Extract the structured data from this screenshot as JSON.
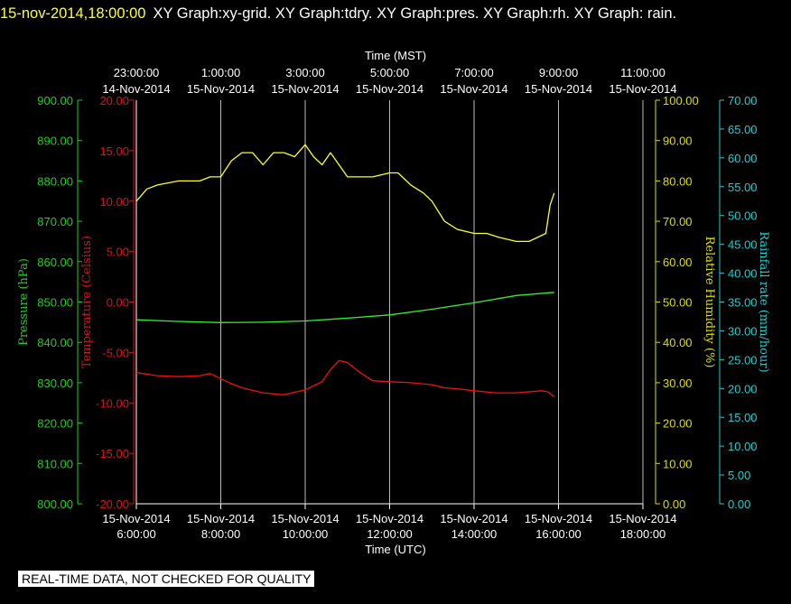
{
  "header": {
    "timestamp": "15-nov-2014,18:00:00",
    "graphs": "XY Graph:xy-grid.  XY Graph:tdry.  XY Graph:pres.  XY Graph:rh.  XY Graph: rain."
  },
  "footer": {
    "quality_note": "REAL-TIME DATA, NOT CHECKED FOR QUALITY"
  },
  "chart_data": {
    "type": "line",
    "top_axis": {
      "label": "Time (MST)",
      "ticks": [
        {
          "time": "23:00:00",
          "date": "14-Nov-2014"
        },
        {
          "time": "1:00:00",
          "date": "15-Nov-2014"
        },
        {
          "time": "3:00:00",
          "date": "15-Nov-2014"
        },
        {
          "time": "5:00:00",
          "date": "15-Nov-2014"
        },
        {
          "time": "7:00:00",
          "date": "15-Nov-2014"
        },
        {
          "time": "9:00:00",
          "date": "15-Nov-2014"
        },
        {
          "time": "11:00:00",
          "date": "15-Nov-2014"
        }
      ]
    },
    "bottom_axis": {
      "label": "Time (UTC)",
      "ticks": [
        {
          "date": "15-Nov-2014",
          "time": "6:00:00"
        },
        {
          "date": "15-Nov-2014",
          "time": "8:00:00"
        },
        {
          "date": "15-Nov-2014",
          "time": "10:00:00"
        },
        {
          "date": "15-Nov-2014",
          "time": "12:00:00"
        },
        {
          "date": "15-Nov-2014",
          "time": "14:00:00"
        },
        {
          "date": "15-Nov-2014",
          "time": "16:00:00"
        },
        {
          "date": "15-Nov-2014",
          "time": "18:00:00"
        }
      ],
      "range_utc_hours": [
        6,
        18
      ]
    },
    "axes": {
      "pressure": {
        "label": "Pressure (hPa)",
        "color": "#22cc22",
        "range": [
          800,
          900
        ],
        "ticks": [
          "800.00",
          "810.00",
          "820.00",
          "830.00",
          "840.00",
          "850.00",
          "860.00",
          "870.00",
          "880.00",
          "890.00",
          "900.00"
        ]
      },
      "temperature": {
        "label": "Temperature (Celsius)",
        "color": "#dd1111",
        "range": [
          -20,
          20
        ],
        "ticks": [
          "-20.00",
          "-15.00",
          "-10.00",
          "-5.00",
          "0.00",
          "5.00",
          "10.00",
          "15.00",
          "20.00"
        ]
      },
      "humidity": {
        "label": "Relative Humidity (%)",
        "color": "#dddd11",
        "range": [
          0,
          100
        ],
        "ticks": [
          "0.00",
          "10.00",
          "20.00",
          "30.00",
          "40.00",
          "50.00",
          "60.00",
          "70.00",
          "80.00",
          "90.00",
          "100.00"
        ]
      },
      "rainfall": {
        "label": "Rainfall rate (mm/hour)",
        "color": "#22cccc",
        "range": [
          0,
          70
        ],
        "ticks": [
          "0.00",
          "5.00",
          "10.00",
          "15.00",
          "20.00",
          "25.00",
          "30.00",
          "35.00",
          "40.00",
          "45.00",
          "50.00",
          "55.00",
          "60.00",
          "65.00",
          "70.00"
        ]
      }
    },
    "grid": true,
    "series": [
      {
        "axis": "humidity",
        "color": "#ffff22",
        "x": [
          6.0,
          6.25,
          6.5,
          7.0,
          7.5,
          7.75,
          8.0,
          8.25,
          8.5,
          8.75,
          9.0,
          9.25,
          9.5,
          9.75,
          10.0,
          10.2,
          10.4,
          10.6,
          10.8,
          11.0,
          11.3,
          11.6,
          12.0,
          12.2,
          12.5,
          12.8,
          13.0,
          13.3,
          13.6,
          14.0,
          14.3,
          14.6,
          15.0,
          15.3,
          15.5,
          15.7,
          15.8,
          15.9
        ],
        "values": [
          75,
          78,
          79,
          80,
          80,
          81,
          81,
          85,
          87,
          87,
          84,
          87,
          87,
          86,
          89,
          86,
          84,
          87,
          84,
          81,
          81,
          81,
          82,
          82,
          79,
          77,
          75,
          70,
          68,
          67,
          67,
          66,
          65,
          65,
          66,
          67,
          74,
          77
        ]
      },
      {
        "axis": "pressure",
        "color": "#33ee33",
        "x": [
          6.0,
          7.0,
          8.0,
          9.0,
          10.0,
          11.0,
          12.0,
          13.0,
          14.0,
          15.0,
          15.9
        ],
        "values": [
          845.6,
          845.2,
          844.9,
          845.0,
          845.3,
          846.0,
          846.8,
          848.2,
          849.8,
          851.6,
          852.4
        ]
      },
      {
        "axis": "temperature",
        "color": "#ee1111",
        "x": [
          6.0,
          6.5,
          7.0,
          7.5,
          7.75,
          8.0,
          8.25,
          8.5,
          9.0,
          9.5,
          10.0,
          10.4,
          10.6,
          10.8,
          11.0,
          11.3,
          11.6,
          12.0,
          12.5,
          13.0,
          13.3,
          13.6,
          14.0,
          14.5,
          15.0,
          15.6,
          15.75,
          15.9
        ],
        "values": [
          -7.0,
          -7.3,
          -7.4,
          -7.3,
          -7.1,
          -7.6,
          -8.1,
          -8.5,
          -9.0,
          -9.2,
          -8.7,
          -7.9,
          -6.7,
          -5.8,
          -6.0,
          -7.0,
          -7.8,
          -7.9,
          -8.0,
          -8.2,
          -8.5,
          -8.6,
          -8.8,
          -9.0,
          -9.0,
          -8.8,
          -8.9,
          -9.4
        ]
      }
    ]
  }
}
